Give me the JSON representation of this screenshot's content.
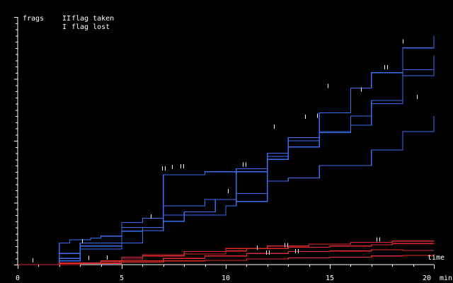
{
  "chart_data": {
    "type": "line",
    "ylabel": "frags",
    "xlabel": "time",
    "x_unit": "min",
    "xlim": [
      0,
      20
    ],
    "ylim": [
      0,
      40
    ],
    "x_ticks": [
      "0",
      "5",
      "10",
      "15",
      "20"
    ],
    "legend": {
      "placement": "top-left",
      "entries": [
        {
          "symbol": "II",
          "label": "flag taken"
        },
        {
          "symbol": "I",
          "label": "flag lost"
        }
      ]
    },
    "colors": {
      "team_blue": "#3a6ef0",
      "team_red": "#e02a2a",
      "axis": "#ffffff"
    },
    "series": [
      {
        "team": "blue",
        "points": [
          [
            0,
            0
          ],
          [
            2,
            3.5
          ],
          [
            2.5,
            4
          ],
          [
            3.5,
            4.3
          ],
          [
            4,
            4.6
          ],
          [
            5,
            5.4
          ],
          [
            6,
            6
          ],
          [
            7,
            14.5
          ],
          [
            9,
            15
          ],
          [
            10.5,
            15.5
          ],
          [
            12,
            18
          ],
          [
            13,
            20.5
          ],
          [
            14.5,
            24.5
          ],
          [
            16,
            28.5
          ],
          [
            17,
            31
          ],
          [
            18.5,
            35
          ],
          [
            20,
            37
          ]
        ]
      },
      {
        "team": "blue",
        "points": [
          [
            0,
            0
          ],
          [
            2,
            0.6
          ],
          [
            3,
            2.5
          ],
          [
            5,
            3.5
          ],
          [
            6,
            5.5
          ],
          [
            7,
            8
          ],
          [
            10,
            9.5
          ],
          [
            10.5,
            15
          ],
          [
            12,
            17
          ],
          [
            13,
            20
          ],
          [
            14.5,
            21.5
          ],
          [
            16,
            22.5
          ],
          [
            17,
            26
          ],
          [
            18.5,
            30.5
          ],
          [
            20,
            33.5
          ]
        ]
      },
      {
        "team": "blue",
        "points": [
          [
            0,
            0
          ],
          [
            2,
            1
          ],
          [
            3,
            3
          ],
          [
            5,
            6.8
          ],
          [
            6,
            7.5
          ],
          [
            7,
            9.5
          ],
          [
            9,
            10.5
          ],
          [
            10.5,
            11.5
          ],
          [
            12,
            17.5
          ],
          [
            13,
            19
          ],
          [
            14.5,
            21.3
          ],
          [
            16,
            24
          ],
          [
            17,
            26.5
          ],
          [
            18.5,
            31.5
          ],
          [
            20,
            33.8
          ]
        ]
      },
      {
        "team": "blue",
        "points": [
          [
            0,
            0
          ],
          [
            2,
            1.8
          ],
          [
            3,
            3.5
          ],
          [
            5,
            6
          ],
          [
            7,
            7
          ],
          [
            8,
            8.5
          ],
          [
            9.5,
            10.5
          ],
          [
            10.5,
            10.2
          ],
          [
            12,
            13.5
          ],
          [
            13,
            14
          ],
          [
            14.5,
            16
          ],
          [
            16,
            16
          ],
          [
            17,
            18.5
          ],
          [
            18.5,
            21.5
          ],
          [
            20,
            24
          ]
        ]
      },
      {
        "team": "red",
        "points": [
          [
            0,
            0
          ],
          [
            2,
            0.3
          ],
          [
            4,
            0.6
          ],
          [
            5,
            1.2
          ],
          [
            6,
            1.6
          ],
          [
            8,
            2.1
          ],
          [
            10,
            2.6
          ],
          [
            12,
            3
          ],
          [
            14,
            3.3
          ],
          [
            16,
            3.6
          ],
          [
            18,
            3.8
          ],
          [
            20,
            3.7
          ]
        ]
      },
      {
        "team": "red",
        "points": [
          [
            0,
            0
          ],
          [
            2,
            0.2
          ],
          [
            4,
            0.5
          ],
          [
            5,
            0.9
          ],
          [
            6,
            1.4
          ],
          [
            8,
            1.7
          ],
          [
            10,
            2.2
          ],
          [
            11,
            2.6
          ],
          [
            13,
            2.8
          ],
          [
            15,
            3
          ],
          [
            17,
            3.2
          ],
          [
            18,
            3.4
          ],
          [
            20,
            3.5
          ]
        ]
      },
      {
        "team": "red",
        "points": [
          [
            0,
            0
          ],
          [
            3,
            0.3
          ],
          [
            5,
            0.6
          ],
          [
            7,
            1
          ],
          [
            9,
            1.4
          ],
          [
            11,
            1.8
          ],
          [
            13,
            2.1
          ],
          [
            15,
            2.2
          ],
          [
            17,
            2.4
          ],
          [
            18.5,
            2.3
          ],
          [
            20,
            2.3
          ]
        ]
      },
      {
        "team": "red",
        "points": [
          [
            0,
            0
          ],
          [
            3,
            0.2
          ],
          [
            5,
            0.4
          ],
          [
            7,
            0.6
          ],
          [
            9,
            0.7
          ],
          [
            11,
            0.9
          ],
          [
            13,
            1.1
          ],
          [
            15,
            1.2
          ],
          [
            17,
            1.4
          ],
          [
            18.5,
            1.5
          ],
          [
            20,
            1.6
          ]
        ]
      }
    ],
    "flag_events": [
      {
        "type": "lost",
        "x": 0.7,
        "y": 0.1
      },
      {
        "type": "lost",
        "x": 3.1,
        "y": 3.2
      },
      {
        "type": "lost",
        "x": 3.4,
        "y": 0.5
      },
      {
        "type": "lost",
        "x": 4.3,
        "y": 0.6
      },
      {
        "type": "lost",
        "x": 6.4,
        "y": 7.2
      },
      {
        "type": "taken",
        "x": 7,
        "y": 15
      },
      {
        "type": "lost",
        "x": 7.4,
        "y": 15.2
      },
      {
        "type": "taken",
        "x": 7.9,
        "y": 15.3
      },
      {
        "type": "lost",
        "x": 10.1,
        "y": 11.3
      },
      {
        "type": "taken",
        "x": 10.9,
        "y": 15.6
      },
      {
        "type": "lost",
        "x": 11.5,
        "y": 2.2
      },
      {
        "type": "taken",
        "x": 12,
        "y": 1.4
      },
      {
        "type": "lost",
        "x": 12.3,
        "y": 21.7
      },
      {
        "type": "taken",
        "x": 12.9,
        "y": 2.6
      },
      {
        "type": "taken",
        "x": 13.4,
        "y": 1.6
      },
      {
        "type": "lost",
        "x": 13.8,
        "y": 23.3
      },
      {
        "type": "lost",
        "x": 14.4,
        "y": 23.5
      },
      {
        "type": "lost",
        "x": 14.9,
        "y": 28.3
      },
      {
        "type": "lost",
        "x": 16.5,
        "y": 27.7
      },
      {
        "type": "taken",
        "x": 17.3,
        "y": 3.5
      },
      {
        "type": "taken",
        "x": 17.7,
        "y": 31.3
      },
      {
        "type": "lost",
        "x": 18.5,
        "y": 35.5
      },
      {
        "type": "lost",
        "x": 19.2,
        "y": 26.5
      }
    ]
  }
}
